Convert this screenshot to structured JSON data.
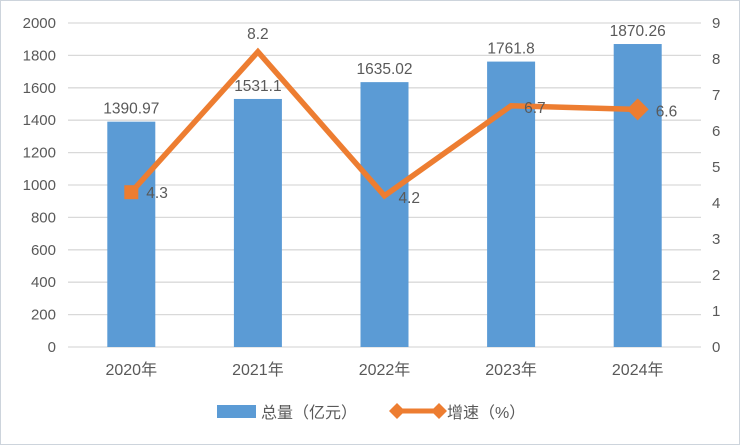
{
  "chart_data": {
    "type": "bar+line",
    "title": "",
    "categories": [
      "2020年",
      "2021年",
      "2022年",
      "2023年",
      "2024年"
    ],
    "series": [
      {
        "name": "总量（亿元）",
        "type": "bar",
        "axis": "left",
        "color": "#5B9BD5",
        "values": [
          1390.97,
          1531.1,
          1635.02,
          1761.8,
          1870.26
        ],
        "labels": [
          "1390.97",
          "1531.1",
          "1635.02",
          "1761.8",
          "1870.26"
        ]
      },
      {
        "name": "增速（%）",
        "type": "line",
        "axis": "right",
        "color": "#ED7D31",
        "values": [
          4.3,
          8.2,
          4.2,
          6.7,
          6.6
        ],
        "labels": [
          "4.3",
          "8.2",
          "4.2",
          "6.7",
          "6.6"
        ],
        "first_marker": "square",
        "last_marker": "diamond"
      }
    ],
    "left_axis": {
      "min": 0,
      "max": 2000,
      "step": 200,
      "ticks": [
        "0",
        "200",
        "400",
        "600",
        "800",
        "1000",
        "1200",
        "1400",
        "1600",
        "1800",
        "2000"
      ]
    },
    "right_axis": {
      "min": 0,
      "max": 9,
      "step": 1,
      "ticks": [
        "0",
        "1",
        "2",
        "3",
        "4",
        "5",
        "6",
        "7",
        "8",
        "9"
      ]
    },
    "grid": true,
    "legend_position": "bottom",
    "legend": [
      {
        "label": "总量（亿元）",
        "swatch": "bar",
        "color": "#5B9BD5"
      },
      {
        "label": "增速（%）",
        "swatch": "line",
        "color": "#ED7D31"
      }
    ]
  },
  "colors": {
    "bar": "#5B9BD5",
    "line": "#ED7D31",
    "grid": "#D9D9D9",
    "text": "#595959",
    "background": "#FFFFFF",
    "frame_border": "#CDD4DC"
  }
}
